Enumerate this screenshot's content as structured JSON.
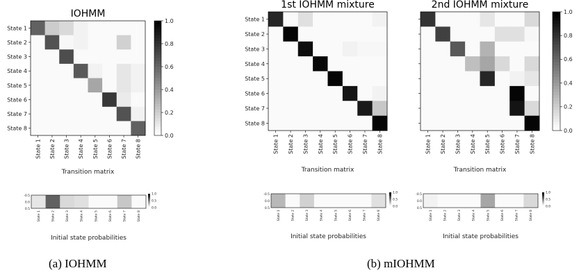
{
  "state_labels": [
    "State 1",
    "State 2",
    "State 3",
    "State 4",
    "State 5",
    "State 6",
    "State 7",
    "State 8"
  ],
  "captions": {
    "left": "(a) IOHMM",
    "right": "(b) mIOHMM"
  },
  "chart_data": [
    {
      "type": "heatmap",
      "title": "IOHMM",
      "xlabel": "Transition matrix",
      "ylabel": "",
      "colormap": "greys",
      "vmin": 0,
      "vmax": 1,
      "colorbar_ticks": [
        "0.0",
        "0.2",
        "0.4",
        "0.6",
        "0.8",
        "1.0"
      ],
      "values": [
        [
          0.62,
          0.2,
          0.15,
          0.05,
          0.02,
          0.02,
          0.02,
          0.02
        ],
        [
          0.02,
          0.68,
          0.03,
          0.05,
          0.02,
          0.02,
          0.18,
          0.02
        ],
        [
          0.02,
          0.02,
          0.7,
          0.02,
          0.02,
          0.02,
          0.02,
          0.02
        ],
        [
          0.02,
          0.02,
          0.02,
          0.65,
          0.05,
          0.02,
          0.1,
          0.05
        ],
        [
          0.02,
          0.02,
          0.02,
          0.02,
          0.35,
          0.02,
          0.1,
          0.05
        ],
        [
          0.02,
          0.02,
          0.02,
          0.02,
          0.02,
          0.78,
          0.08,
          0.02
        ],
        [
          0.02,
          0.02,
          0.02,
          0.02,
          0.02,
          0.02,
          0.68,
          0.05
        ],
        [
          0.02,
          0.02,
          0.02,
          0.02,
          0.02,
          0.02,
          0.02,
          0.62
        ]
      ]
    },
    {
      "type": "heatmap",
      "title": "1st IOHMM mixture",
      "xlabel": "Transition matrix",
      "ylabel": "",
      "colormap": "greys",
      "vmin": 0,
      "vmax": 1,
      "values": [
        [
          0.85,
          0.02,
          0.12,
          0.02,
          0.02,
          0.02,
          0.02,
          0.05
        ],
        [
          0.02,
          0.98,
          0.02,
          0.02,
          0.02,
          0.02,
          0.02,
          0.02
        ],
        [
          0.02,
          0.02,
          0.95,
          0.02,
          0.02,
          0.05,
          0.03,
          0.03
        ],
        [
          0.02,
          0.02,
          0.02,
          0.97,
          0.02,
          0.02,
          0.02,
          0.02
        ],
        [
          0.02,
          0.02,
          0.02,
          0.02,
          0.98,
          0.02,
          0.02,
          0.02
        ],
        [
          0.02,
          0.02,
          0.02,
          0.02,
          0.02,
          0.92,
          0.02,
          0.05
        ],
        [
          0.02,
          0.02,
          0.02,
          0.02,
          0.02,
          0.02,
          0.9,
          0.22
        ],
        [
          0.02,
          0.02,
          0.02,
          0.02,
          0.02,
          0.02,
          0.02,
          0.98
        ]
      ]
    },
    {
      "type": "heatmap",
      "title": "2nd IOHMM mixture",
      "xlabel": "Transition matrix",
      "ylabel": "",
      "colormap": "greys",
      "vmin": 0,
      "vmax": 1,
      "colorbar_ticks": [
        "0.0",
        "0.2",
        "0.4",
        "0.6",
        "0.8",
        "1.0"
      ],
      "values": [
        [
          0.8,
          0.02,
          0.02,
          0.02,
          0.1,
          0.02,
          0.02,
          0.15
        ],
        [
          0.02,
          0.75,
          0.02,
          0.02,
          0.02,
          0.12,
          0.12,
          0.03
        ],
        [
          0.02,
          0.02,
          0.65,
          0.02,
          0.3,
          0.02,
          0.02,
          0.02
        ],
        [
          0.02,
          0.02,
          0.02,
          0.25,
          0.35,
          0.15,
          0.02,
          0.15
        ],
        [
          0.02,
          0.02,
          0.02,
          0.02,
          0.85,
          0.02,
          0.05,
          0.1
        ],
        [
          0.02,
          0.02,
          0.02,
          0.02,
          0.02,
          0.02,
          0.98,
          0.02
        ],
        [
          0.02,
          0.02,
          0.02,
          0.02,
          0.02,
          0.02,
          0.92,
          0.15
        ],
        [
          0.02,
          0.02,
          0.02,
          0.02,
          0.02,
          0.02,
          0.02,
          0.98
        ]
      ]
    },
    {
      "type": "heatmap",
      "title": "",
      "xlabel": "Initial state probabilities",
      "colormap": "greys",
      "vmin": 0,
      "vmax": 1,
      "ytick_labels": [
        "-0.5",
        "0.0",
        "0.5"
      ],
      "colorbar_ticks": [
        "0.0",
        "0.5",
        "1.0"
      ],
      "values": [
        [
          0.1,
          0.62,
          0.15,
          0.12,
          0.02,
          0.02,
          0.22,
          0.02
        ]
      ]
    },
    {
      "type": "heatmap",
      "title": "",
      "xlabel": "Initial state probabilities",
      "colormap": "greys",
      "vmin": 0,
      "vmax": 1,
      "ytick_labels": [
        "-0.5",
        "0.0",
        "0.5"
      ],
      "colorbar_ticks": [
        "0.0",
        "0.5",
        "1.0"
      ],
      "values": [
        [
          0.28,
          0.02,
          0.18,
          0.02,
          0.02,
          0.02,
          0.02,
          0.12
        ]
      ]
    },
    {
      "type": "heatmap",
      "title": "",
      "xlabel": "Initial state probabilities",
      "colormap": "greys",
      "vmin": 0,
      "vmax": 1,
      "ytick_labels": [
        "-0.5",
        "0.0",
        "0.5"
      ],
      "colorbar_ticks": [
        "0.0",
        "0.5",
        "1.0"
      ],
      "values": [
        [
          0.05,
          0.02,
          0.02,
          0.02,
          0.35,
          0.02,
          0.02,
          0.15
        ]
      ]
    }
  ]
}
